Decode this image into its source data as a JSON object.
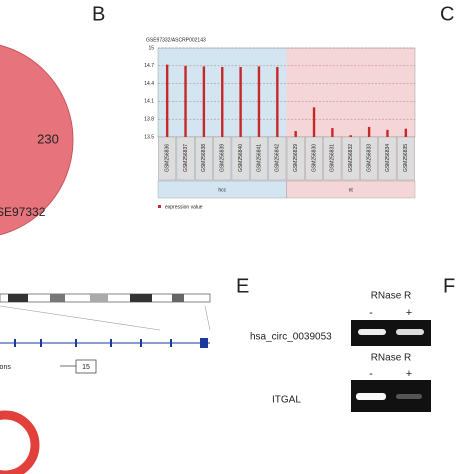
{
  "panels": {
    "b": "B",
    "c": "C",
    "e": "E",
    "f": "F"
  },
  "venn": {
    "count": "230",
    "label": "SE97332"
  },
  "chart_data": {
    "type": "bar",
    "title": "GSE97332/ASCRP002143",
    "categories": [
      "GSM256836",
      "GSM256837",
      "GSM256838",
      "GSM256839",
      "GSM256840",
      "GSM256841",
      "GSM256842",
      "GSM256829",
      "GSM256830",
      "GSM256831",
      "GSM256832",
      "GSM256833",
      "GSM256834",
      "GSM256835"
    ],
    "series": [
      {
        "name": "expression value",
        "color": "#c62828",
        "values": [
          14.72,
          14.7,
          14.69,
          14.68,
          14.68,
          14.69,
          14.68,
          13.6,
          14.0,
          13.65,
          13.53,
          13.67,
          13.62,
          13.64
        ]
      }
    ],
    "groups": [
      "hcc",
      "nt"
    ],
    "ylim": [
      13.5,
      15
    ],
    "yticks": [
      13.5,
      13.8,
      14.1,
      14.4,
      14.7,
      15
    ],
    "grid": true
  },
  "track": {
    "label": "ions",
    "count": "15"
  },
  "gel": {
    "treatment": "RNase R",
    "minus": "-",
    "plus": "+",
    "genes": [
      "hsa_circ_0039053",
      "ITGAL"
    ]
  }
}
